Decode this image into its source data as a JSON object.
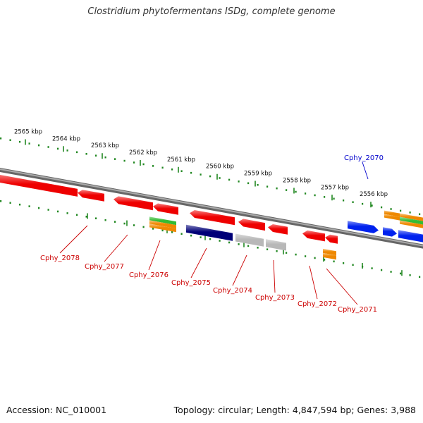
{
  "title": "Clostridium phytofermentans ISDg, complete genome",
  "footer": {
    "accession": "Accession: NC_010001",
    "topology": "Topology: circular; Length: 4,847,594 bp; Genes: 3,988"
  },
  "colors": {
    "backbone": "#8a8a8a",
    "tick": "#228822",
    "forward_label": "#0000cc",
    "reverse_label": "#cc0000",
    "red_gene": "#ee0000",
    "blue_gene": "#0022ee",
    "navy_gene": "#000077",
    "gray_gene": "#b8b8b8",
    "orange_gene": "#ee8800",
    "green_gene": "#33bb33"
  },
  "scale_labels": [
    "2565 kbp",
    "2564 kbp",
    "2563 kbp",
    "2562 kbp",
    "2561 kbp",
    "2560 kbp",
    "2559 kbp",
    "2558 kbp",
    "2557 kbp",
    "2556 kbp"
  ],
  "gene_labels_forward": [
    "Cphy_2070"
  ],
  "gene_labels_reverse": [
    "Cphy_2078",
    "Cphy_2077",
    "Cphy_2076",
    "Cphy_2075",
    "Cphy_2074",
    "Cphy_2073",
    "Cphy_2072",
    "Cphy_2071"
  ]
}
